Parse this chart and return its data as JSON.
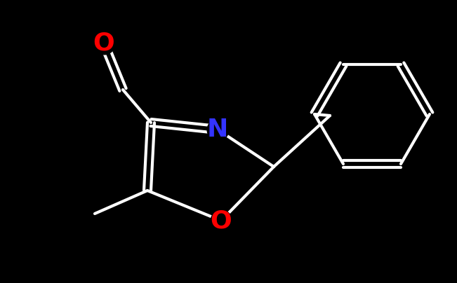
{
  "background_color": "#000000",
  "bond_color": "#ffffff",
  "N_color": "#3333ff",
  "O_color": "#ff0000",
  "bond_width": 3.0,
  "font_size_atom": 26,
  "figsize": [
    6.51,
    4.04
  ],
  "dpi": 100,
  "N_label": "N",
  "O_label": "O"
}
